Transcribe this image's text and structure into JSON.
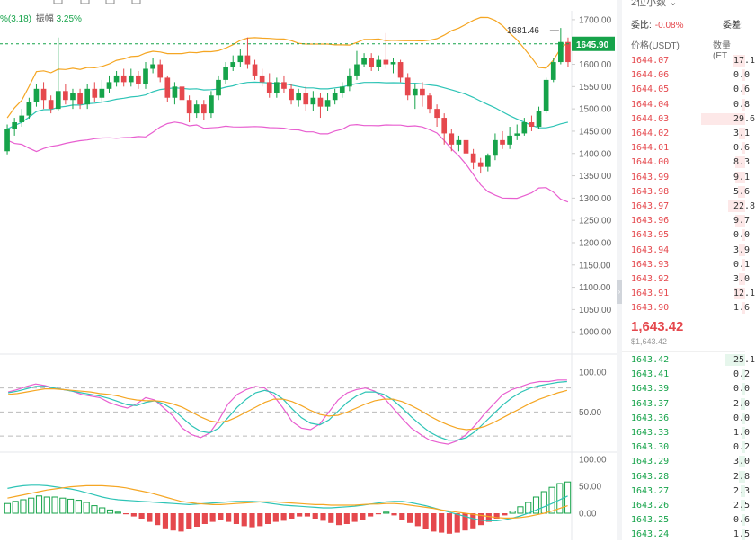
{
  "chart_header": {
    "change_text": "%(3.18)",
    "amplitude_label": "振幅",
    "amplitude_value": "3.25%"
  },
  "colors": {
    "up": "#16a34a",
    "down": "#e5484d",
    "ma_fast": "#f5a623",
    "ma_mid": "#2ec4b6",
    "boll_line": "#e85fd0",
    "price_line": "#16a34a"
  },
  "chart_data": [
    {
      "type": "candlestick",
      "title": "",
      "ylim": [
        950,
        1720
      ],
      "ticks": [
        1700,
        1650,
        1600,
        1550,
        1500,
        1450,
        1400,
        1350,
        1300,
        1250,
        1200,
        1150,
        1100,
        1050,
        1000
      ],
      "tick_labels": [
        "1700.00",
        "1650.00",
        "1600.00",
        "1550.00",
        "1500.00",
        "1450.00",
        "1400.00",
        "1350.00",
        "1300.00",
        "1250.00",
        "1200.00",
        "1150.00",
        "1100.00",
        "1050.00",
        "1000.00"
      ],
      "current_price": 1645.9,
      "current_price_label": "1645.90",
      "high_annotation": {
        "value": 1681.46,
        "label": "1681.46"
      },
      "candles": [
        [
          1405,
          1455,
          1465,
          1398
        ],
        [
          1455,
          1470,
          1480,
          1440
        ],
        [
          1470,
          1485,
          1500,
          1460
        ],
        [
          1485,
          1515,
          1525,
          1478
        ],
        [
          1515,
          1545,
          1555,
          1505
        ],
        [
          1545,
          1520,
          1560,
          1500
        ],
        [
          1520,
          1500,
          1530,
          1490
        ],
        [
          1500,
          1540,
          1660,
          1495
        ],
        [
          1540,
          1520,
          1555,
          1510
        ],
        [
          1520,
          1535,
          1545,
          1500
        ],
        [
          1535,
          1510,
          1545,
          1500
        ],
        [
          1510,
          1545,
          1555,
          1500
        ],
        [
          1545,
          1525,
          1560,
          1515
        ],
        [
          1525,
          1545,
          1565,
          1515
        ],
        [
          1545,
          1560,
          1575,
          1535
        ],
        [
          1560,
          1575,
          1585,
          1550
        ],
        [
          1575,
          1560,
          1590,
          1550
        ],
        [
          1560,
          1575,
          1590,
          1550
        ],
        [
          1575,
          1555,
          1585,
          1545
        ],
        [
          1555,
          1590,
          1605,
          1545
        ],
        [
          1590,
          1600,
          1615,
          1580
        ],
        [
          1600,
          1570,
          1610,
          1560
        ],
        [
          1570,
          1525,
          1575,
          1515
        ],
        [
          1525,
          1550,
          1560,
          1510
        ],
        [
          1550,
          1520,
          1560,
          1505
        ],
        [
          1520,
          1490,
          1530,
          1470
        ],
        [
          1490,
          1510,
          1520,
          1480
        ],
        [
          1510,
          1490,
          1520,
          1475
        ],
        [
          1490,
          1530,
          1540,
          1480
        ],
        [
          1530,
          1565,
          1575,
          1520
        ],
        [
          1565,
          1595,
          1605,
          1555
        ],
        [
          1595,
          1605,
          1620,
          1585
        ],
        [
          1605,
          1620,
          1635,
          1595
        ],
        [
          1620,
          1600,
          1660,
          1590
        ],
        [
          1600,
          1575,
          1610,
          1565
        ],
        [
          1575,
          1560,
          1590,
          1550
        ],
        [
          1560,
          1535,
          1580,
          1525
        ],
        [
          1535,
          1560,
          1570,
          1525
        ],
        [
          1560,
          1545,
          1575,
          1535
        ],
        [
          1545,
          1520,
          1555,
          1510
        ],
        [
          1520,
          1535,
          1545,
          1505
        ],
        [
          1535,
          1510,
          1550,
          1495
        ],
        [
          1510,
          1525,
          1540,
          1495
        ],
        [
          1525,
          1505,
          1535,
          1480
        ],
        [
          1505,
          1520,
          1535,
          1495
        ],
        [
          1520,
          1535,
          1545,
          1510
        ],
        [
          1535,
          1550,
          1560,
          1525
        ],
        [
          1550,
          1575,
          1590,
          1540
        ],
        [
          1575,
          1600,
          1630,
          1565
        ],
        [
          1600,
          1615,
          1625,
          1595
        ],
        [
          1615,
          1595,
          1625,
          1585
        ],
        [
          1595,
          1610,
          1620,
          1585
        ],
        [
          1610,
          1600,
          1670,
          1590
        ],
        [
          1600,
          1605,
          1615,
          1580
        ],
        [
          1605,
          1570,
          1610,
          1560
        ],
        [
          1570,
          1530,
          1580,
          1520
        ],
        [
          1530,
          1545,
          1555,
          1500
        ],
        [
          1545,
          1530,
          1560,
          1505
        ],
        [
          1530,
          1500,
          1535,
          1490
        ],
        [
          1500,
          1480,
          1510,
          1460
        ],
        [
          1480,
          1445,
          1490,
          1420
        ],
        [
          1445,
          1420,
          1455,
          1405
        ],
        [
          1420,
          1430,
          1440,
          1405
        ],
        [
          1430,
          1400,
          1440,
          1380
        ],
        [
          1400,
          1380,
          1410,
          1365
        ],
        [
          1380,
          1370,
          1390,
          1355
        ],
        [
          1370,
          1395,
          1400,
          1360
        ],
        [
          1395,
          1430,
          1445,
          1385
        ],
        [
          1430,
          1420,
          1450,
          1410
        ],
        [
          1420,
          1440,
          1460,
          1410
        ],
        [
          1440,
          1445,
          1465,
          1430
        ],
        [
          1445,
          1470,
          1480,
          1440
        ],
        [
          1470,
          1460,
          1485,
          1450
        ],
        [
          1460,
          1495,
          1505,
          1455
        ],
        [
          1495,
          1565,
          1570,
          1490
        ],
        [
          1565,
          1605,
          1615,
          1560
        ],
        [
          1605,
          1650,
          1681.46,
          1600
        ],
        [
          1650,
          1605,
          1660,
          1595
        ]
      ]
    },
    {
      "type": "line",
      "title": "",
      "ylim": [
        0,
        120
      ],
      "ticks": [
        100,
        50
      ],
      "tick_labels": [
        "100.00",
        "50.00"
      ],
      "reference_lines": [
        80,
        50,
        20
      ],
      "series": [
        {
          "values": [
            75,
            78,
            82,
            85,
            83,
            80,
            78,
            76,
            72,
            70,
            68,
            62,
            58,
            55,
            60,
            68,
            65,
            55,
            45,
            30,
            22,
            18,
            24,
            40,
            60,
            72,
            78,
            82,
            80,
            70,
            55,
            38,
            30,
            28,
            35,
            50,
            65,
            74,
            78,
            80,
            76,
            68,
            55,
            42,
            30,
            22,
            15,
            12,
            10,
            14,
            22,
            34,
            48,
            60,
            72,
            78,
            82,
            86,
            88,
            88,
            90,
            90
          ]
        },
        {
          "values": [
            74,
            76,
            79,
            82,
            82,
            80,
            78,
            76,
            74,
            72,
            70,
            67,
            63,
            59,
            58,
            62,
            64,
            60,
            53,
            43,
            33,
            26,
            24,
            30,
            43,
            56,
            66,
            74,
            77,
            74,
            66,
            54,
            43,
            36,
            34,
            40,
            51,
            62,
            70,
            75,
            75,
            72,
            65,
            55,
            44,
            34,
            25,
            19,
            15,
            15,
            18,
            26,
            37,
            48,
            59,
            68,
            75,
            80,
            83,
            85,
            87,
            88
          ]
        },
        {
          "values": [
            72,
            73,
            75,
            77,
            79,
            79,
            78,
            77,
            76,
            75,
            73,
            72,
            70,
            67,
            65,
            64,
            64,
            63,
            60,
            56,
            50,
            44,
            39,
            37,
            39,
            44,
            50,
            56,
            62,
            66,
            66,
            63,
            58,
            52,
            47,
            45,
            46,
            50,
            55,
            60,
            64,
            66,
            66,
            63,
            58,
            52,
            45,
            39,
            34,
            30,
            28,
            29,
            32,
            37,
            43,
            49,
            55,
            61,
            66,
            70,
            74,
            77
          ]
        }
      ]
    },
    {
      "type": "bar",
      "title": "",
      "ylim": [
        -50,
        110
      ],
      "ticks": [
        100,
        50,
        0
      ],
      "tick_labels": [
        "100.00",
        "50.00",
        "0.00"
      ],
      "values": [
        18,
        22,
        25,
        28,
        32,
        30,
        30,
        28,
        26,
        24,
        20,
        14,
        10,
        6,
        2,
        -2,
        -6,
        -10,
        -16,
        -22,
        -28,
        -32,
        -34,
        -30,
        -25,
        -20,
        -16,
        -12,
        -16,
        -20,
        -24,
        -26,
        -24,
        -20,
        -16,
        -14,
        -10,
        -6,
        -6,
        -10,
        -14,
        -18,
        -22,
        -20,
        -16,
        -12,
        -6,
        -2,
        2,
        -4,
        -12,
        -18,
        -24,
        -30,
        -34,
        -36,
        -38,
        -36,
        -32,
        -28,
        -22,
        -16,
        -10,
        -4,
        4,
        12,
        20,
        30,
        40,
        48,
        55,
        58
      ],
      "series": [
        {
          "values": [
            46,
            49,
            51,
            52,
            52,
            51,
            49,
            47,
            45,
            42,
            38,
            34,
            30,
            27,
            25,
            24,
            23,
            22,
            21,
            20,
            19,
            18,
            17,
            16,
            17,
            18,
            19,
            20,
            21,
            22,
            22,
            22,
            21,
            19,
            17,
            15,
            14,
            13,
            12,
            11,
            10,
            10,
            11,
            12,
            13,
            15,
            17,
            19,
            21,
            22,
            22,
            20,
            17,
            14,
            10,
            6,
            2,
            -2,
            -6,
            -10,
            -13,
            -14,
            -14,
            -12,
            -9,
            -5,
            0,
            6,
            12,
            18,
            25,
            32
          ]
        },
        {
          "values": [
            28,
            31,
            34,
            37,
            40,
            43,
            45,
            47,
            49,
            50,
            51,
            51,
            51,
            50,
            49,
            47,
            44,
            41,
            38,
            34,
            30,
            26,
            22,
            20,
            18,
            17,
            16,
            16,
            17,
            18,
            19,
            20,
            21,
            21,
            21,
            20,
            19,
            18,
            17,
            16,
            16,
            15,
            15,
            15,
            15,
            16,
            17,
            17,
            18,
            18,
            17,
            15,
            13,
            11,
            9,
            6,
            4,
            2,
            0,
            -2,
            -4,
            -6,
            -8,
            -9,
            -9,
            -8,
            -6,
            -3,
            0,
            4,
            9,
            14
          ]
        }
      ]
    }
  ],
  "order_book": {
    "top_label": "2位小数",
    "ratio_label": "委比:",
    "ratio_value": "-0.08%",
    "diff_label": "委差:",
    "price_header": "价格(USDT)",
    "qty_header": "数量(ET",
    "asks": [
      {
        "price": "1644.07",
        "qty": "17.1",
        "depth": 0.1
      },
      {
        "price": "1644.06",
        "qty": "0.0",
        "depth": 0.02
      },
      {
        "price": "1644.05",
        "qty": "0.6",
        "depth": 0.03
      },
      {
        "price": "1644.04",
        "qty": "0.8",
        "depth": 0.03
      },
      {
        "price": "1644.03",
        "qty": "29.6",
        "depth": 0.36
      },
      {
        "price": "1644.02",
        "qty": "3.1",
        "depth": 0.05
      },
      {
        "price": "1644.01",
        "qty": "0.6",
        "depth": 0.03
      },
      {
        "price": "1644.00",
        "qty": "8.3",
        "depth": 0.08
      },
      {
        "price": "1643.99",
        "qty": "9.1",
        "depth": 0.08
      },
      {
        "price": "1643.98",
        "qty": "5.6",
        "depth": 0.06
      },
      {
        "price": "1643.97",
        "qty": "22.8",
        "depth": 0.14
      },
      {
        "price": "1643.96",
        "qty": "9.7",
        "depth": 0.08
      },
      {
        "price": "1643.95",
        "qty": "0.0",
        "depth": 0.02
      },
      {
        "price": "1643.94",
        "qty": "3.9",
        "depth": 0.05
      },
      {
        "price": "1643.93",
        "qty": "0.1",
        "depth": 0.02
      },
      {
        "price": "1643.92",
        "qty": "3.0",
        "depth": 0.05
      },
      {
        "price": "1643.91",
        "qty": "12.1",
        "depth": 0.09
      },
      {
        "price": "1643.90",
        "qty": "1.6",
        "depth": 0.03
      }
    ],
    "last_price": "1,643.42",
    "last_price_usd": "$1,643.42",
    "bids": [
      {
        "price": "1643.42",
        "qty": "25.1",
        "depth": 0.16
      },
      {
        "price": "1643.41",
        "qty": "0.2",
        "depth": 0.02
      },
      {
        "price": "1643.39",
        "qty": "0.0",
        "depth": 0.02
      },
      {
        "price": "1643.37",
        "qty": "2.0",
        "depth": 0.04
      },
      {
        "price": "1643.36",
        "qty": "0.0",
        "depth": 0.02
      },
      {
        "price": "1643.33",
        "qty": "1.0",
        "depth": 0.03
      },
      {
        "price": "1643.30",
        "qty": "0.2",
        "depth": 0.02
      },
      {
        "price": "1643.29",
        "qty": "3.0",
        "depth": 0.05
      },
      {
        "price": "1643.28",
        "qty": "2.8",
        "depth": 0.05
      },
      {
        "price": "1643.27",
        "qty": "2.3",
        "depth": 0.04
      },
      {
        "price": "1643.26",
        "qty": "2.5",
        "depth": 0.04
      },
      {
        "price": "1643.25",
        "qty": "0.6",
        "depth": 0.03
      },
      {
        "price": "1643.24",
        "qty": "1.5",
        "depth": 0.03
      }
    ]
  }
}
